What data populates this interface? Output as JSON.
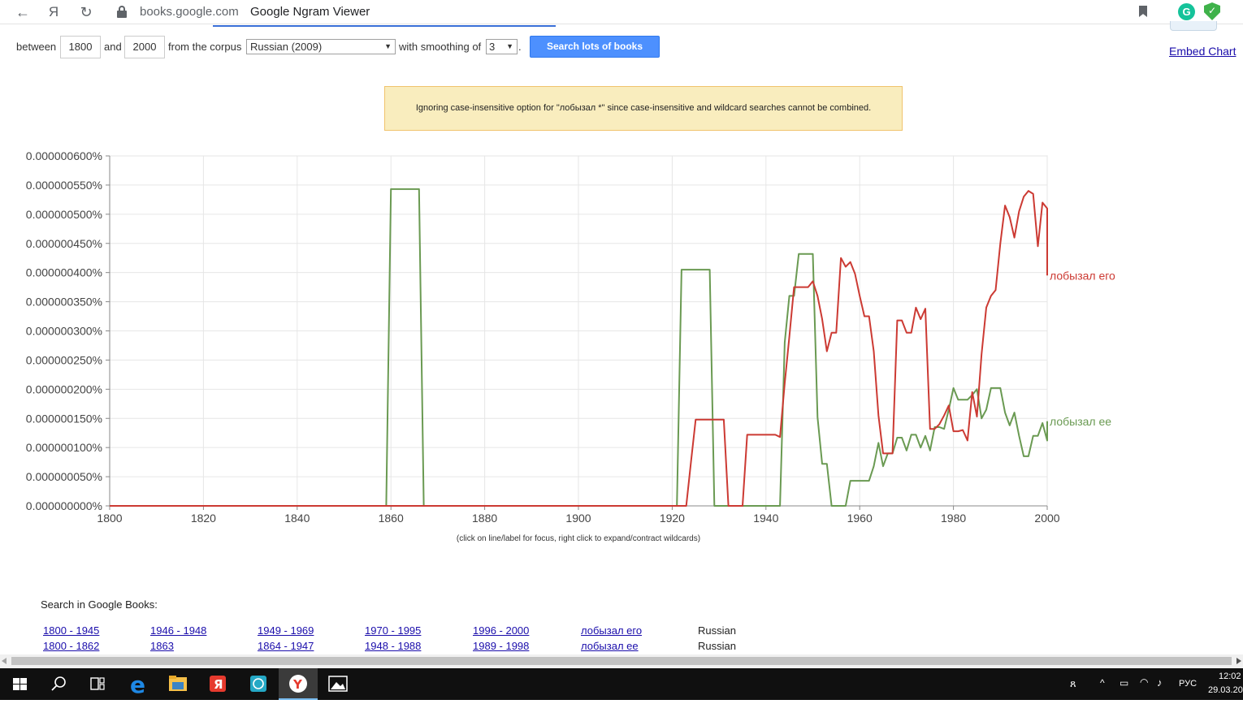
{
  "browser": {
    "domain": "books.google.com",
    "title": "Google Ngram Viewer",
    "back_glyph": "←",
    "yandex_glyph": "Я",
    "reload_glyph": "↻"
  },
  "controls": {
    "between_label": "between",
    "start_year": "1800",
    "and_label": "and",
    "end_year": "2000",
    "corpus_label": "from the corpus",
    "corpus_value": "Russian (2009)",
    "smoothing_label": "with smoothing of",
    "smoothing_value": "3",
    "period": ".",
    "search_button": "Search lots of books",
    "embed_link": "Embed Chart"
  },
  "notice": "Ignoring case-insensitive option for \"лобызал *\" since case-insensitive and wildcard searches cannot be combined.",
  "chart_data": {
    "type": "line",
    "xlim": [
      1800,
      2000
    ],
    "ylim": [
      0,
      6e-07
    ],
    "x_ticks": [
      "1800",
      "1820",
      "1840",
      "1860",
      "1880",
      "1900",
      "1920",
      "1940",
      "1960",
      "1980",
      "2000"
    ],
    "y_ticks": [
      "0.000000000%",
      "0.000000050%",
      "0.000000100%",
      "0.000000150%",
      "0.000000200%",
      "0.000000250%",
      "0.000000300%",
      "0.000000350%",
      "0.000000400%",
      "0.000000450%",
      "0.000000500%",
      "0.000000550%",
      "0.000000600%"
    ],
    "grid": true,
    "series": [
      {
        "name": "лобызал его",
        "color": "#cc3a33",
        "points": [
          [
            1800,
            0
          ],
          [
            1920,
            0
          ],
          [
            1922,
            0
          ],
          [
            1923,
            0
          ],
          [
            1924,
            7.5e-08
          ],
          [
            1925,
            1.48e-07
          ],
          [
            1926,
            1.48e-07
          ],
          [
            1927,
            1.48e-07
          ],
          [
            1928,
            1.48e-07
          ],
          [
            1929,
            1.48e-07
          ],
          [
            1930,
            1.48e-07
          ],
          [
            1931,
            1.48e-07
          ],
          [
            1932,
            0
          ],
          [
            1934,
            0
          ],
          [
            1935,
            0
          ],
          [
            1936,
            1.22e-07
          ],
          [
            1937,
            1.22e-07
          ],
          [
            1938,
            1.22e-07
          ],
          [
            1939,
            1.22e-07
          ],
          [
            1940,
            1.22e-07
          ],
          [
            1941,
            1.22e-07
          ],
          [
            1942,
            1.22e-07
          ],
          [
            1943,
            1.18e-07
          ],
          [
            1944,
            2.1e-07
          ],
          [
            1945,
            2.9e-07
          ],
          [
            1946,
            3.75e-07
          ],
          [
            1947,
            3.75e-07
          ],
          [
            1948,
            3.75e-07
          ],
          [
            1949,
            3.75e-07
          ],
          [
            1950,
            3.85e-07
          ],
          [
            1951,
            3.6e-07
          ],
          [
            1952,
            3.2e-07
          ],
          [
            1953,
            2.65e-07
          ],
          [
            1954,
            2.97e-07
          ],
          [
            1955,
            2.97e-07
          ],
          [
            1956,
            4.25e-07
          ],
          [
            1957,
            4.1e-07
          ],
          [
            1958,
            4.18e-07
          ],
          [
            1959,
            3.98e-07
          ],
          [
            1960,
            3.6e-07
          ],
          [
            1961,
            3.25e-07
          ],
          [
            1962,
            3.25e-07
          ],
          [
            1963,
            2.65e-07
          ],
          [
            1964,
            1.55e-07
          ],
          [
            1965,
            9e-08
          ],
          [
            1966,
            9e-08
          ],
          [
            1967,
            9e-08
          ],
          [
            1968,
            3.18e-07
          ],
          [
            1969,
            3.18e-07
          ],
          [
            1970,
            2.97e-07
          ],
          [
            1971,
            2.97e-07
          ],
          [
            1972,
            3.4e-07
          ],
          [
            1973,
            3.2e-07
          ],
          [
            1974,
            3.38e-07
          ],
          [
            1975,
            1.32e-07
          ],
          [
            1976,
            1.32e-07
          ],
          [
            1977,
            1.4e-07
          ],
          [
            1978,
            1.55e-07
          ],
          [
            1979,
            1.72e-07
          ],
          [
            1980,
            1.28e-07
          ],
          [
            1981,
            1.28e-07
          ],
          [
            1982,
            1.3e-07
          ],
          [
            1983,
            1.12e-07
          ],
          [
            1984,
            1.95e-07
          ],
          [
            1985,
            1.53e-07
          ],
          [
            1986,
            2.6e-07
          ],
          [
            1987,
            3.4e-07
          ],
          [
            1988,
            3.6e-07
          ],
          [
            1989,
            3.7e-07
          ],
          [
            1990,
            4.5e-07
          ],
          [
            1991,
            5.15e-07
          ],
          [
            1992,
            4.95e-07
          ],
          [
            1993,
            4.6e-07
          ],
          [
            1994,
            5.05e-07
          ],
          [
            1995,
            5.3e-07
          ],
          [
            1996,
            5.4e-07
          ],
          [
            1997,
            5.35e-07
          ],
          [
            1998,
            4.45e-07
          ],
          [
            1999,
            5.2e-07
          ],
          [
            2000,
            5.1e-07
          ],
          [
            2000.2,
            3.95e-07
          ]
        ]
      },
      {
        "name": "лобызал ее",
        "color": "#6a9a52",
        "points": [
          [
            1800,
            0
          ],
          [
            1859,
            0
          ],
          [
            1860,
            5.43e-07
          ],
          [
            1861,
            5.43e-07
          ],
          [
            1862,
            5.43e-07
          ],
          [
            1863,
            5.43e-07
          ],
          [
            1864,
            5.43e-07
          ],
          [
            1865,
            5.43e-07
          ],
          [
            1866,
            5.43e-07
          ],
          [
            1867,
            0
          ],
          [
            1920,
            0
          ],
          [
            1921,
            0
          ],
          [
            1922,
            4.05e-07
          ],
          [
            1923,
            4.05e-07
          ],
          [
            1924,
            4.05e-07
          ],
          [
            1925,
            4.05e-07
          ],
          [
            1926,
            4.05e-07
          ],
          [
            1927,
            4.05e-07
          ],
          [
            1928,
            4.05e-07
          ],
          [
            1929,
            0
          ],
          [
            1942,
            0
          ],
          [
            1943,
            0
          ],
          [
            1944,
            2.8e-07
          ],
          [
            1945,
            3.6e-07
          ],
          [
            1946,
            3.6e-07
          ],
          [
            1947,
            4.32e-07
          ],
          [
            1948,
            4.32e-07
          ],
          [
            1949,
            4.32e-07
          ],
          [
            1950,
            4.32e-07
          ],
          [
            1951,
            1.52e-07
          ],
          [
            1952,
            7.2e-08
          ],
          [
            1953,
            7.2e-08
          ],
          [
            1954,
            0
          ],
          [
            1955,
            0
          ],
          [
            1956,
            0
          ],
          [
            1957,
            0
          ],
          [
            1958,
            4.3e-08
          ],
          [
            1959,
            4.3e-08
          ],
          [
            1960,
            4.3e-08
          ],
          [
            1961,
            4.3e-08
          ],
          [
            1962,
            4.3e-08
          ],
          [
            1963,
            6.8e-08
          ],
          [
            1964,
            1.08e-07
          ],
          [
            1965,
            6.8e-08
          ],
          [
            1966,
            9e-08
          ],
          [
            1967,
            9e-08
          ],
          [
            1968,
            1.17e-07
          ],
          [
            1969,
            1.17e-07
          ],
          [
            1970,
            9.5e-08
          ],
          [
            1971,
            1.22e-07
          ],
          [
            1972,
            1.22e-07
          ],
          [
            1973,
            1e-07
          ],
          [
            1974,
            1.2e-07
          ],
          [
            1975,
            9.5e-08
          ],
          [
            1976,
            1.35e-07
          ],
          [
            1977,
            1.35e-07
          ],
          [
            1978,
            1.32e-07
          ],
          [
            1979,
            1.65e-07
          ],
          [
            1980,
            2.02e-07
          ],
          [
            1981,
            1.82e-07
          ],
          [
            1982,
            1.82e-07
          ],
          [
            1983,
            1.82e-07
          ],
          [
            1984,
            1.9e-07
          ],
          [
            1985,
            2e-07
          ],
          [
            1986,
            1.5e-07
          ],
          [
            1987,
            1.65e-07
          ],
          [
            1988,
            2.02e-07
          ],
          [
            1989,
            2.02e-07
          ],
          [
            1990,
            2.02e-07
          ],
          [
            1991,
            1.6e-07
          ],
          [
            1992,
            1.38e-07
          ],
          [
            1993,
            1.6e-07
          ],
          [
            1994,
            1.2e-07
          ],
          [
            1995,
            8.5e-08
          ],
          [
            1996,
            8.5e-08
          ],
          [
            1997,
            1.2e-07
          ],
          [
            1998,
            1.2e-07
          ],
          [
            1999,
            1.42e-07
          ],
          [
            2000,
            1.12e-07
          ],
          [
            2000.2,
            1.45e-07
          ]
        ]
      }
    ]
  },
  "chart_hint": "(click on line/label for focus, right click to expand/contract wildcards)",
  "books": {
    "title": "Search in Google Books:",
    "rows": [
      {
        "links": [
          "1800 - 1945",
          "1946 - 1948",
          "1949 - 1969",
          "1970 - 1995",
          "1996 - 2000",
          "лобызал его"
        ],
        "lang": "Russian"
      },
      {
        "links": [
          "1800 - 1862",
          "1863",
          "1864 - 1947",
          "1948 - 1988",
          "1989 - 1998",
          "лобызал ее"
        ],
        "lang": "Russian"
      }
    ]
  },
  "taskbar": {
    "time": "12:02",
    "date": "29.03.20",
    "lang": "РУС"
  }
}
